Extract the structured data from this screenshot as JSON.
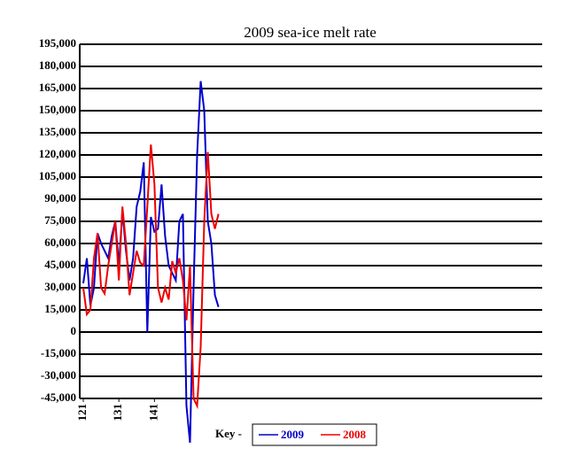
{
  "chart_data": {
    "type": "line",
    "title": "2009 sea-ice melt rate",
    "x": [
      121,
      122,
      123,
      124,
      125,
      126,
      127,
      128,
      129,
      130,
      131,
      132,
      133,
      134,
      135,
      136,
      137,
      138,
      139,
      140,
      141,
      142,
      143,
      144,
      145,
      146,
      147,
      148,
      149,
      150,
      151,
      152,
      153,
      154,
      155,
      156,
      157,
      158,
      159
    ],
    "series": [
      {
        "name": "2009",
        "color": "#0000cc",
        "values": [
          33000,
          50000,
          18000,
          30000,
          67000,
          60000,
          55000,
          50000,
          65000,
          75000,
          45000,
          82000,
          55000,
          35000,
          50000,
          85000,
          95000,
          115000,
          0,
          78000,
          68000,
          70000,
          100000,
          65000,
          45000,
          40000,
          35000,
          75000,
          80000,
          -50000,
          -75000,
          30000,
          120000,
          170000,
          150000,
          75000,
          60000,
          25000,
          17000
        ]
      },
      {
        "name": "2008",
        "color": "#ee0000",
        "values": [
          30000,
          12000,
          15000,
          50000,
          67000,
          30000,
          26000,
          45000,
          60000,
          75000,
          35000,
          85000,
          60000,
          25000,
          40000,
          55000,
          47000,
          45000,
          85000,
          127000,
          100000,
          30000,
          20000,
          30000,
          22000,
          48000,
          40000,
          50000,
          35000,
          8000,
          45000,
          -45000,
          -50000,
          -10000,
          75000,
          122000,
          80000,
          70000,
          80000
        ]
      }
    ],
    "xlim": [
      120,
      250
    ],
    "xticks": [
      121,
      131,
      141
    ],
    "ylim": [
      -45000,
      195000
    ],
    "yticks": [
      {
        "value": -45000,
        "label": "-45,000"
      },
      {
        "value": -30000,
        "label": "-30,000"
      },
      {
        "value": -15000,
        "label": "-15,000"
      },
      0,
      {
        "value": 15000,
        "label": "15,000"
      },
      {
        "value": 30000,
        "label": "30,000"
      },
      {
        "value": 45000,
        "label": "45,000"
      },
      {
        "value": 60000,
        "label": "60,000"
      },
      {
        "value": 75000,
        "label": "75,000"
      },
      {
        "value": 90000,
        "label": "90,000"
      },
      {
        "value": 105000,
        "label": "105,000"
      },
      {
        "value": 120000,
        "label": "120,000"
      },
      {
        "value": 135000,
        "label": "135,000"
      },
      {
        "value": 150000,
        "label": "150,000"
      },
      {
        "value": 165000,
        "label": "165,000"
      },
      {
        "value": 180000,
        "label": "180,000"
      },
      {
        "value": 195000,
        "label": "195,000"
      }
    ],
    "grid": true,
    "legend_title": "Key -"
  }
}
